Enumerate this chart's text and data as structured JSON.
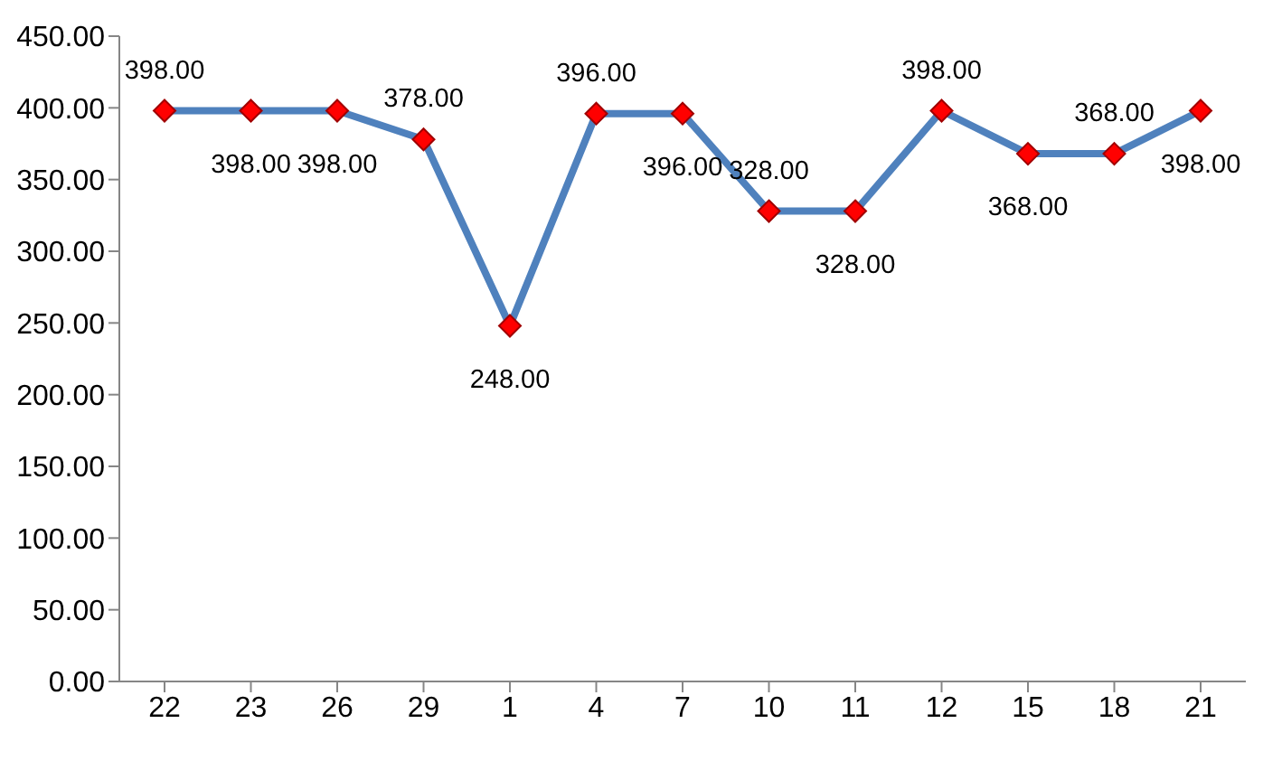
{
  "chart_data": {
    "type": "line",
    "categories": [
      "22",
      "23",
      "26",
      "29",
      "1",
      "4",
      "7",
      "10",
      "11",
      "12",
      "15",
      "18",
      "21"
    ],
    "series": [
      {
        "color": "#4f81bd",
        "values": [
          398,
          398,
          398,
          378,
          248,
          396,
          396,
          328,
          328,
          398,
          368,
          368,
          398
        ],
        "value_labels": [
          "398.00",
          "398.00",
          "398.00",
          "378.00",
          "248.00",
          "396.00",
          "396.00",
          "328.00",
          "328.00",
          "398.00",
          "368.00",
          "368.00",
          "398.00"
        ]
      }
    ],
    "ylim": [
      0,
      450
    ],
    "yticks": [
      {
        "value": 0,
        "label": "0.00"
      },
      {
        "value": 50,
        "label": "50.00"
      },
      {
        "value": 100,
        "label": "100.00"
      },
      {
        "value": 150,
        "label": "150.00"
      },
      {
        "value": 200,
        "label": "200.00"
      },
      {
        "value": 250,
        "label": "250.00"
      },
      {
        "value": 300,
        "label": "300.00"
      },
      {
        "value": 350,
        "label": "350.00"
      },
      {
        "value": 400,
        "label": "400.00"
      },
      {
        "value": 450,
        "label": "450.00"
      }
    ],
    "grid": false,
    "legend": false,
    "marker": "diamond",
    "line_style": "solid"
  }
}
